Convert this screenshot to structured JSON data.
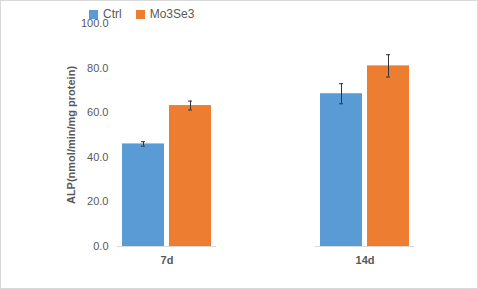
{
  "chart_data": {
    "type": "bar",
    "y_label": "ALP(nmol/min/mg protein)",
    "categories": [
      "7d",
      "14d"
    ],
    "series": [
      {
        "name": "Ctrl",
        "color": "#5B9BD5",
        "values": [
          46.0,
          68.5
        ],
        "errors": [
          1.0,
          4.5
        ]
      },
      {
        "name": "Mo3Se3",
        "color": "#ED7D31",
        "values": [
          63.2,
          81.0
        ],
        "errors": [
          2.0,
          5.0
        ]
      }
    ],
    "ylim": [
      0,
      100
    ],
    "yticks": [
      {
        "value": 0,
        "label": "0.0"
      },
      {
        "value": 20,
        "label": "20.0"
      },
      {
        "value": 40,
        "label": "40.0"
      },
      {
        "value": 60,
        "label": "60.0"
      },
      {
        "value": 80,
        "label": "80.0"
      },
      {
        "value": 100,
        "label": "100.0"
      }
    ],
    "grid": false,
    "legend": "top-left"
  }
}
